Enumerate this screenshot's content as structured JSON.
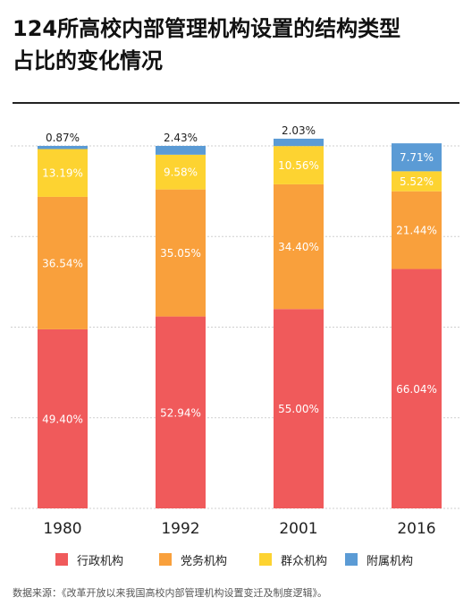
{
  "title": {
    "line1": "124所高校内部管理机构设置的结构类型",
    "line2": "占比的变化情况"
  },
  "chart_data": {
    "type": "bar",
    "stacked": true,
    "unit": "%",
    "categories": [
      "1980",
      "1992",
      "2001",
      "2016"
    ],
    "series": [
      {
        "name": "行政机构",
        "color": "#f05a5b",
        "values": [
          49.4,
          52.94,
          55.0,
          66.04
        ],
        "labels": [
          "49.40%",
          "52.94%",
          "55.00%",
          "66.04%"
        ]
      },
      {
        "name": "党务机构",
        "color": "#f9a03c",
        "values": [
          36.54,
          35.05,
          34.4,
          21.44
        ],
        "labels": [
          "36.54%",
          "35.05%",
          "34.40%",
          "21.44%"
        ]
      },
      {
        "name": "群众机构",
        "color": "#fdd331",
        "values": [
          13.19,
          9.58,
          10.56,
          5.52
        ],
        "labels": [
          "13.19%",
          "9.58%",
          "10.56%",
          "5.52%"
        ]
      },
      {
        "name": "附属机构",
        "color": "#5b9bd5",
        "values": [
          0.87,
          2.43,
          2.03,
          7.71
        ],
        "labels": [
          "0.87%",
          "2.43%",
          "2.03%",
          "7.71%"
        ]
      }
    ],
    "ylim": [
      0,
      100
    ],
    "grid": true,
    "legend_position": "bottom"
  },
  "source": "数据来源：《改革开放以来我国高校内部管理机构设置变迁及制度逻辑》。"
}
